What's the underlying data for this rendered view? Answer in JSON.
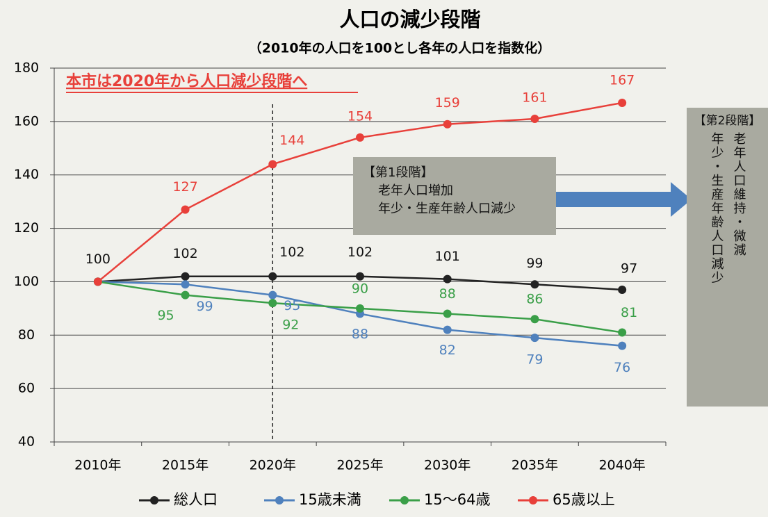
{
  "chart_data": {
    "type": "line",
    "title": "人口の減少段階",
    "subtitle": "（2010年の人口を100とし各年の人口を指数化）",
    "categories": [
      "2010年",
      "2015年",
      "2020年",
      "2025年",
      "2030年",
      "2035年",
      "2040年"
    ],
    "series": [
      {
        "name": "総人口",
        "color": "#222222",
        "values": [
          100,
          102,
          102,
          102,
          101,
          99,
          97
        ]
      },
      {
        "name": "15歳未満",
        "color": "#4f81bd",
        "values": [
          100,
          99,
          95,
          88,
          82,
          79,
          76
        ]
      },
      {
        "name": "15〜64歳",
        "color": "#3a9f48",
        "values": [
          100,
          95,
          92,
          90,
          88,
          86,
          81
        ]
      },
      {
        "name": "65歳以上",
        "color": "#e8403a",
        "values": [
          100,
          127,
          144,
          154,
          159,
          161,
          167
        ]
      }
    ],
    "ylim": [
      40,
      180
    ],
    "yticks": [
      40,
      60,
      80,
      100,
      120,
      140,
      160,
      180
    ],
    "grid": true,
    "legend": "bottom",
    "annotations": {
      "headline": "本市は2020年から人口減少段階へ",
      "stage1": {
        "title": "【第1段階】",
        "lines": [
          "老年人口増加",
          "年少・生産年齢人口減少"
        ]
      },
      "stage2": {
        "title": "【第2段階】",
        "columns": [
          "老年人口維持・微減",
          "年少・生産年齢人口減少"
        ]
      }
    }
  }
}
